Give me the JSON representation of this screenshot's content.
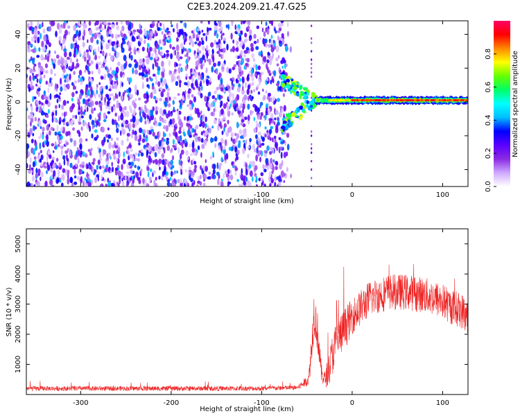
{
  "title": "C2E3.2024.209.21.47.G25",
  "chart_data": [
    {
      "type": "heatmap",
      "xlabel": "Height of straight line (km)",
      "ylabel": "Frequency (Hz)",
      "xlim": [
        -360,
        128
      ],
      "ylim": [
        -50,
        48
      ],
      "xticks": [
        -300,
        -200,
        -100,
        0,
        100
      ],
      "yticks": [
        -40,
        -20,
        0,
        20,
        40
      ],
      "colorbar": {
        "label": "Normalized spectral amplitude",
        "range": [
          0,
          1
        ],
        "ticks": [
          "0.0",
          "0.2",
          "0.4",
          "0.6",
          "0.8"
        ],
        "colors": [
          "#ffffff",
          "#cfa8ff",
          "#8a2be2",
          "#5a00ff",
          "#0000ff",
          "#00bfff",
          "#00ffff",
          "#00ff66",
          "#66ff00",
          "#ffff00",
          "#ff8800",
          "#ff0000",
          "#ff0066"
        ]
      },
      "segments": [
        {
          "name": "broadband noise",
          "x_range": [
            -360,
            -73
          ],
          "freq_range": [
            -50,
            48
          ],
          "amplitude": 0.2
        },
        {
          "name": "transition",
          "x_range": [
            -78,
            -40
          ],
          "freq_range": [
            -15,
            15
          ],
          "amplitude": 0.5
        },
        {
          "name": "carrier line",
          "x_range": [
            -40,
            128
          ],
          "freq": 1.0,
          "amplitude": 0.9
        }
      ]
    },
    {
      "type": "line",
      "xlabel": "Height of straight line (km)",
      "ylabel": "SNR (10 * v/v)",
      "xlim": [
        -360,
        128
      ],
      "ylim": [
        0,
        5500
      ],
      "xticks": [
        -300,
        -200,
        -100,
        0,
        100
      ],
      "yticks": [
        1000,
        2000,
        3000,
        4000,
        5000
      ],
      "color": "#ee2222",
      "series_envelope": {
        "x": [
          -360,
          -100,
          -60,
          -48,
          -45,
          -42,
          -38,
          -34,
          -30,
          -26,
          -22,
          -18,
          -10,
          0,
          10,
          20,
          40,
          60,
          80,
          100,
          110,
          120,
          128
        ],
        "y": [
          200,
          200,
          230,
          500,
          1500,
          2800,
          2000,
          700,
          500,
          800,
          1300,
          1700,
          2100,
          2600,
          2900,
          3200,
          3400,
          3400,
          3300,
          3100,
          2900,
          2800,
          2600
        ],
        "noise": [
          80,
          80,
          80,
          200,
          600,
          800,
          700,
          300,
          300,
          500,
          700,
          700,
          700,
          600,
          600,
          600,
          600,
          600,
          600,
          600,
          600,
          600,
          600
        ]
      }
    }
  ]
}
